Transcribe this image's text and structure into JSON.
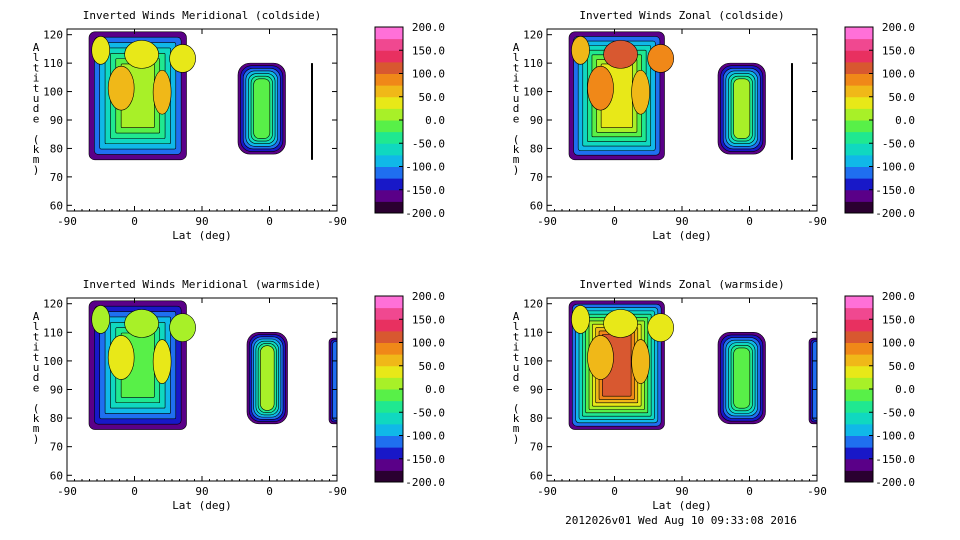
{
  "footer": "2012026v01 Wed Aug 10 09:33:08 2016",
  "chart_data": [
    {
      "type": "heatmap",
      "title": "Inverted Winds Meridional (coldside)",
      "xlabel": "Lat (deg)",
      "ylabel": "Altitude (km)",
      "x_ticks": [
        "-90",
        "0",
        "90",
        "0",
        "-90"
      ],
      "y_ticks": [
        60,
        70,
        80,
        90,
        100,
        110,
        120
      ],
      "ylim": [
        58,
        122
      ],
      "colorbar": {
        "min": -200,
        "max": 200,
        "ticks": [
          "200.0",
          "150.0",
          "100.0",
          "50.0",
          "0.0",
          "-50.0",
          "-100.0",
          "-150.0",
          "-200.0"
        ]
      }
    },
    {
      "type": "heatmap",
      "title": "Inverted Winds Zonal (coldside)",
      "xlabel": "Lat (deg)",
      "ylabel": "Altitude (km)",
      "x_ticks": [
        "-90",
        "0",
        "90",
        "0",
        "-90"
      ],
      "y_ticks": [
        60,
        70,
        80,
        90,
        100,
        110,
        120
      ],
      "ylim": [
        58,
        122
      ],
      "colorbar": {
        "min": -200,
        "max": 200,
        "ticks": [
          "200.0",
          "150.0",
          "100.0",
          "50.0",
          "0.0",
          "-50.0",
          "-100.0",
          "-150.0",
          "-200.0"
        ]
      }
    },
    {
      "type": "heatmap",
      "title": "Inverted Winds Meridional (warmside)",
      "xlabel": "Lat (deg)",
      "ylabel": "Altitude (km)",
      "x_ticks": [
        "-90",
        "0",
        "90",
        "0",
        "-90"
      ],
      "y_ticks": [
        60,
        70,
        80,
        90,
        100,
        110,
        120
      ],
      "ylim": [
        58,
        122
      ],
      "colorbar": {
        "min": -200,
        "max": 200,
        "ticks": [
          "200.0",
          "150.0",
          "100.0",
          "50.0",
          "0.0",
          "-50.0",
          "-100.0",
          "-150.0",
          "-200.0"
        ]
      }
    },
    {
      "type": "heatmap",
      "title": "Inverted Winds Zonal (warmside)",
      "xlabel": "Lat (deg)",
      "ylabel": "Altitude (km)",
      "x_ticks": [
        "-90",
        "0",
        "90",
        "0",
        "-90"
      ],
      "y_ticks": [
        60,
        70,
        80,
        90,
        100,
        110,
        120
      ],
      "ylim": [
        58,
        122
      ],
      "colorbar": {
        "min": -200,
        "max": 200,
        "ticks": [
          "200.0",
          "150.0",
          "100.0",
          "50.0",
          "0.0",
          "-50.0",
          "-100.0",
          "-150.0",
          "-200.0"
        ]
      }
    }
  ],
  "colorscale": [
    "#2a0030",
    "#5a0088",
    "#1818c8",
    "#1f6ff0",
    "#10b8e8",
    "#10d8c0",
    "#20e890",
    "#58f048",
    "#a8f028",
    "#e8e818",
    "#f0b818",
    "#f08818",
    "#d85830",
    "#e83060",
    "#f04890",
    "#ff70d8"
  ]
}
